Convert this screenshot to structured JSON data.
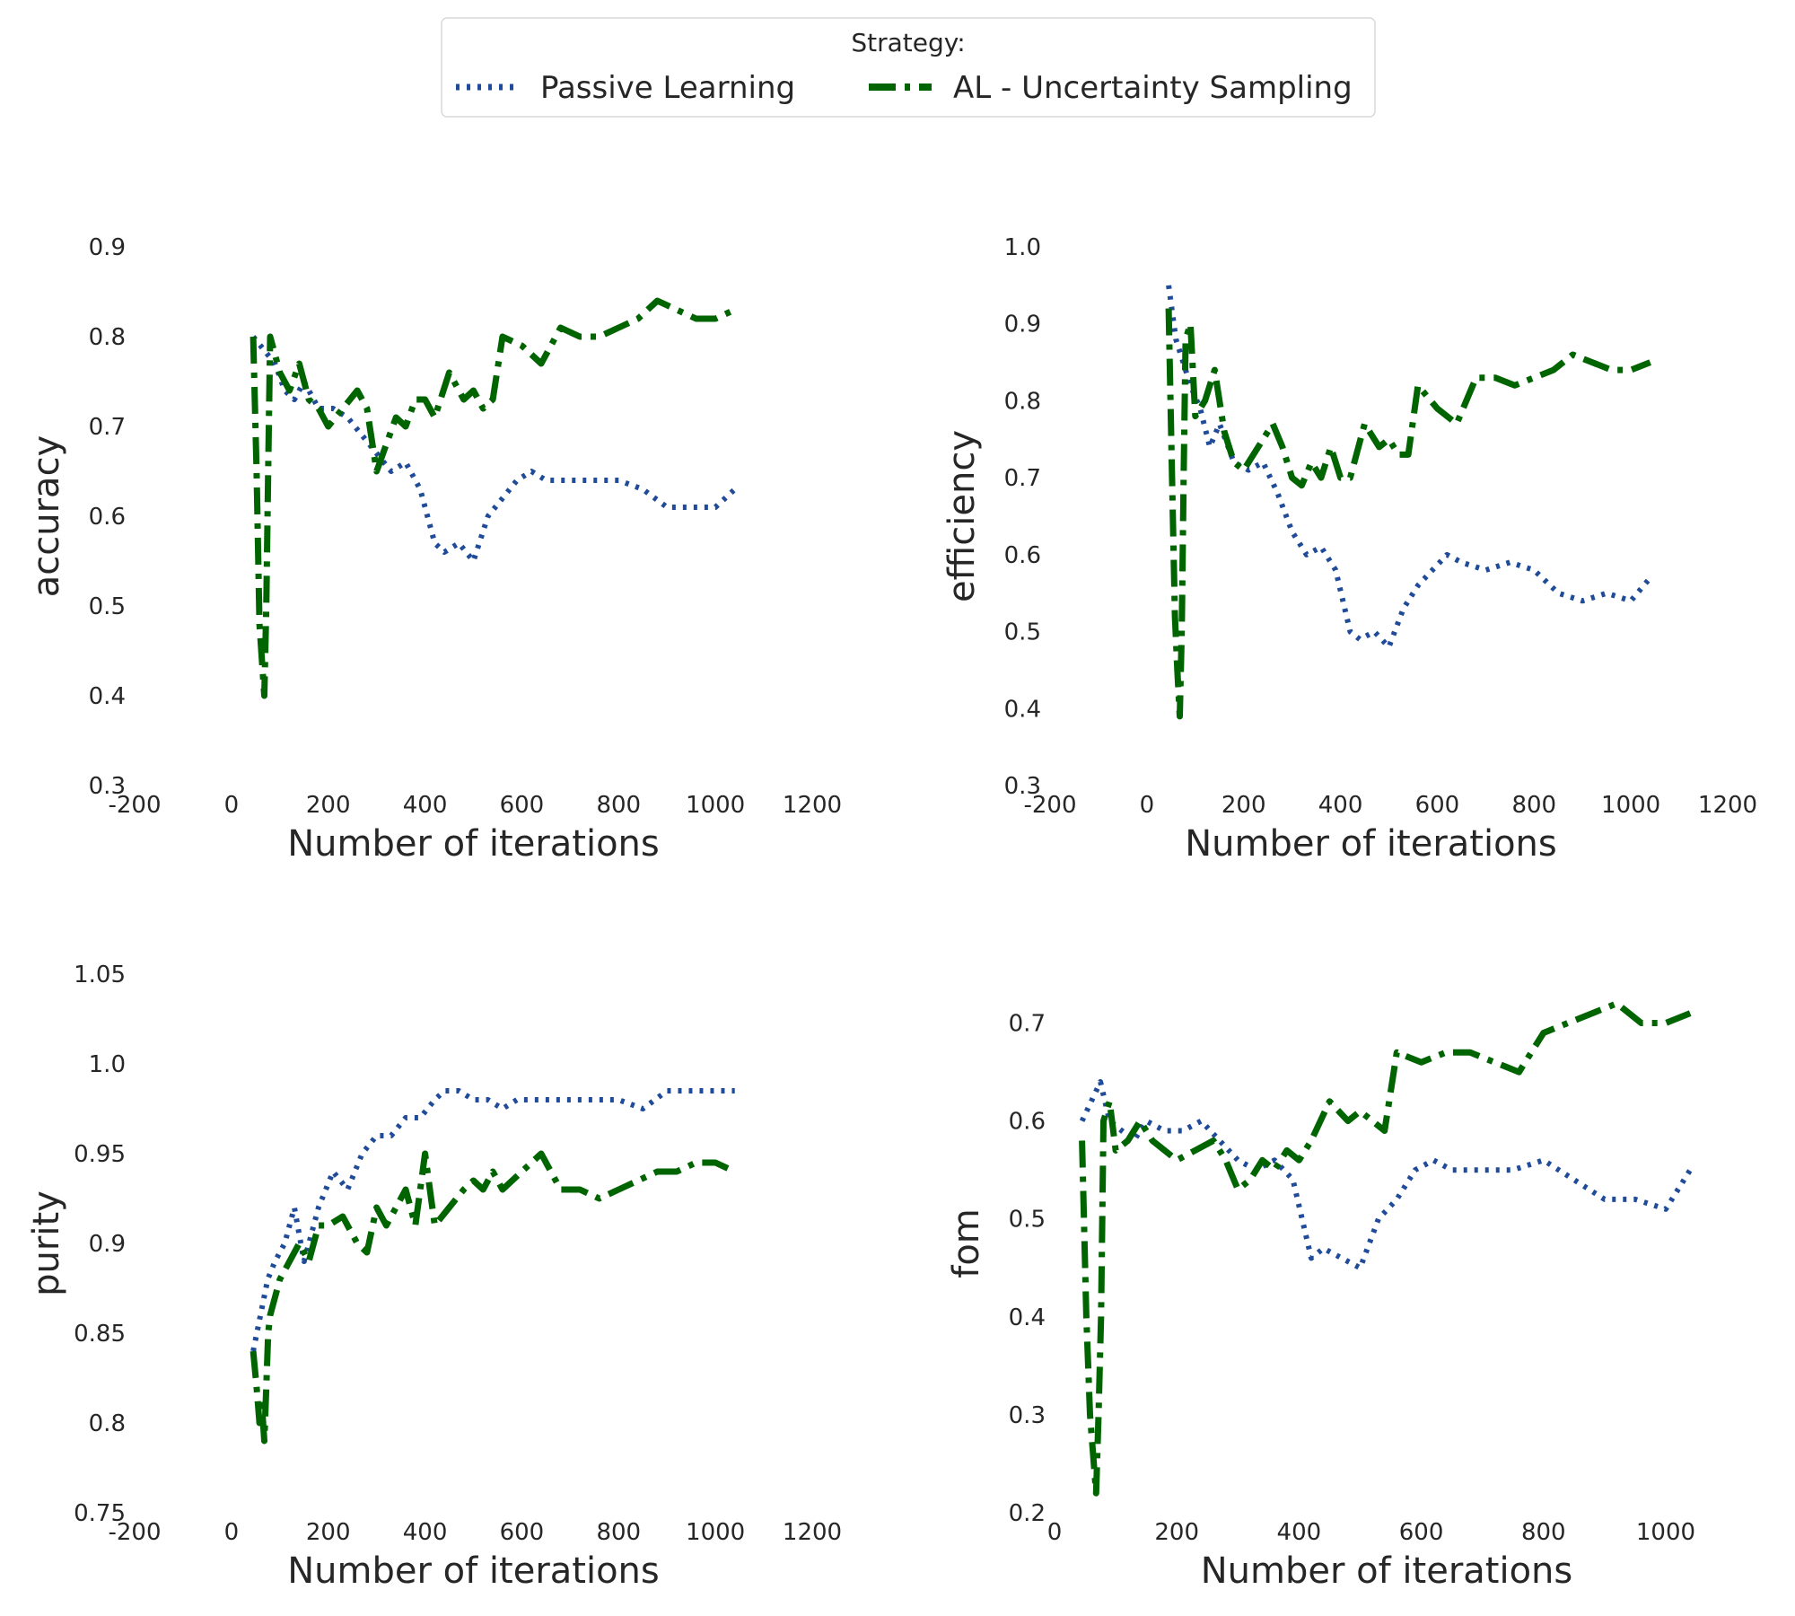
{
  "legend": {
    "title": "Strategy:",
    "entries": [
      {
        "name": "Passive Learning",
        "color": "#1f4b99",
        "dash": "dotted"
      },
      {
        "name": "AL - Uncertainty Sampling",
        "color": "#006400",
        "dash": "dashdot"
      }
    ]
  },
  "chart_data": [
    {
      "type": "line",
      "xlabel": "Number of iterations",
      "ylabel": "accuracy",
      "xlim": [
        -200,
        1200
      ],
      "ylim": [
        0.3,
        0.9
      ],
      "xticks": [
        "-200",
        "0",
        "200",
        "400",
        "600",
        "800",
        "1000",
        "1200"
      ],
      "yticks": [
        "0.3",
        "0.4",
        "0.5",
        "0.6",
        "0.7",
        "0.8",
        "0.9"
      ],
      "series": [
        {
          "name": "Passive Learning",
          "color": "#1f4b99",
          "x": [
            45,
            60,
            75,
            90,
            110,
            130,
            150,
            180,
            210,
            240,
            270,
            300,
            330,
            360,
            390,
            420,
            440,
            470,
            500,
            530,
            560,
            590,
            620,
            650,
            700,
            750,
            800,
            850,
            900,
            950,
            1000,
            1040
          ],
          "y": [
            0.8,
            0.79,
            0.78,
            0.77,
            0.74,
            0.73,
            0.75,
            0.72,
            0.72,
            0.71,
            0.69,
            0.67,
            0.65,
            0.66,
            0.63,
            0.57,
            0.56,
            0.57,
            0.55,
            0.6,
            0.62,
            0.64,
            0.65,
            0.64,
            0.64,
            0.64,
            0.64,
            0.63,
            0.61,
            0.61,
            0.61,
            0.63
          ]
        },
        {
          "name": "AL - Uncertainty Sampling",
          "color": "#006400",
          "x": [
            45,
            52,
            58,
            63,
            68,
            72,
            76,
            80,
            90,
            100,
            120,
            140,
            160,
            180,
            200,
            230,
            260,
            280,
            300,
            320,
            340,
            360,
            380,
            400,
            420,
            450,
            480,
            500,
            520,
            540,
            560,
            600,
            640,
            680,
            720,
            760,
            800,
            840,
            880,
            920,
            960,
            1000,
            1040
          ],
          "y": [
            0.8,
            0.65,
            0.48,
            0.44,
            0.4,
            0.5,
            0.65,
            0.8,
            0.78,
            0.76,
            0.74,
            0.77,
            0.73,
            0.72,
            0.7,
            0.72,
            0.74,
            0.72,
            0.65,
            0.68,
            0.71,
            0.7,
            0.73,
            0.73,
            0.71,
            0.76,
            0.73,
            0.74,
            0.72,
            0.73,
            0.8,
            0.79,
            0.77,
            0.81,
            0.8,
            0.8,
            0.81,
            0.82,
            0.84,
            0.83,
            0.82,
            0.82,
            0.83
          ]
        }
      ]
    },
    {
      "type": "line",
      "xlabel": "Number of iterations",
      "ylabel": "efficiency",
      "xlim": [
        -200,
        1200
      ],
      "ylim": [
        0.3,
        1.0
      ],
      "xticks": [
        "-200",
        "0",
        "200",
        "400",
        "600",
        "800",
        "1000",
        "1200"
      ],
      "yticks": [
        "0.3",
        "0.4",
        "0.5",
        "0.6",
        "0.7",
        "0.8",
        "0.9",
        "1.0"
      ],
      "series": [
        {
          "name": "Passive Learning",
          "color": "#1f4b99",
          "x": [
            45,
            60,
            75,
            90,
            110,
            130,
            150,
            180,
            210,
            240,
            270,
            300,
            330,
            360,
            390,
            420,
            440,
            470,
            500,
            530,
            560,
            590,
            620,
            650,
            700,
            750,
            800,
            850,
            900,
            950,
            1000,
            1040
          ],
          "y": [
            0.95,
            0.88,
            0.85,
            0.82,
            0.79,
            0.74,
            0.77,
            0.72,
            0.71,
            0.72,
            0.68,
            0.63,
            0.6,
            0.61,
            0.58,
            0.5,
            0.49,
            0.5,
            0.48,
            0.53,
            0.56,
            0.58,
            0.6,
            0.59,
            0.58,
            0.59,
            0.58,
            0.55,
            0.54,
            0.55,
            0.54,
            0.57
          ]
        },
        {
          "name": "AL - Uncertainty Sampling",
          "color": "#006400",
          "x": [
            45,
            52,
            58,
            63,
            68,
            72,
            76,
            80,
            90,
            100,
            120,
            140,
            160,
            180,
            200,
            230,
            260,
            280,
            300,
            320,
            340,
            360,
            380,
            400,
            420,
            450,
            480,
            500,
            520,
            540,
            560,
            600,
            640,
            680,
            720,
            760,
            800,
            840,
            880,
            920,
            960,
            1000,
            1040
          ],
          "y": [
            0.92,
            0.7,
            0.52,
            0.45,
            0.39,
            0.5,
            0.7,
            0.88,
            0.9,
            0.78,
            0.8,
            0.84,
            0.76,
            0.72,
            0.71,
            0.74,
            0.77,
            0.74,
            0.7,
            0.69,
            0.72,
            0.7,
            0.74,
            0.7,
            0.7,
            0.77,
            0.74,
            0.75,
            0.73,
            0.73,
            0.82,
            0.79,
            0.77,
            0.83,
            0.83,
            0.82,
            0.83,
            0.84,
            0.86,
            0.85,
            0.84,
            0.84,
            0.85
          ]
        }
      ]
    },
    {
      "type": "line",
      "xlabel": "Number of iterations",
      "ylabel": "purity",
      "xlim": [
        -200,
        1200
      ],
      "ylim": [
        0.75,
        1.05
      ],
      "xticks": [
        "-200",
        "0",
        "200",
        "400",
        "600",
        "800",
        "1000",
        "1200"
      ],
      "yticks": [
        "0.75",
        "0.8",
        "0.85",
        "0.9",
        "0.95",
        "1.0",
        "1.05"
      ],
      "series": [
        {
          "name": "Passive Learning",
          "color": "#1f4b99",
          "x": [
            45,
            60,
            75,
            90,
            110,
            130,
            150,
            180,
            210,
            240,
            270,
            300,
            330,
            360,
            390,
            420,
            440,
            470,
            500,
            530,
            560,
            590,
            620,
            650,
            700,
            750,
            800,
            850,
            900,
            950,
            1000,
            1040
          ],
          "y": [
            0.84,
            0.86,
            0.88,
            0.89,
            0.9,
            0.92,
            0.89,
            0.92,
            0.94,
            0.93,
            0.95,
            0.96,
            0.96,
            0.97,
            0.97,
            0.98,
            0.985,
            0.985,
            0.98,
            0.98,
            0.975,
            0.98,
            0.98,
            0.98,
            0.98,
            0.98,
            0.98,
            0.975,
            0.985,
            0.985,
            0.985,
            0.985
          ]
        },
        {
          "name": "AL - Uncertainty Sampling",
          "color": "#006400",
          "x": [
            45,
            52,
            58,
            63,
            68,
            72,
            76,
            80,
            90,
            100,
            120,
            140,
            160,
            180,
            200,
            230,
            260,
            280,
            300,
            320,
            340,
            360,
            380,
            400,
            420,
            450,
            480,
            500,
            520,
            540,
            560,
            600,
            640,
            680,
            720,
            760,
            800,
            840,
            880,
            920,
            960,
            1000,
            1040
          ],
          "y": [
            0.84,
            0.82,
            0.8,
            0.81,
            0.79,
            0.82,
            0.85,
            0.86,
            0.87,
            0.88,
            0.89,
            0.9,
            0.89,
            0.91,
            0.91,
            0.915,
            0.9,
            0.895,
            0.92,
            0.91,
            0.92,
            0.93,
            0.91,
            0.95,
            0.91,
            0.92,
            0.93,
            0.935,
            0.93,
            0.94,
            0.93,
            0.94,
            0.95,
            0.93,
            0.93,
            0.925,
            0.93,
            0.935,
            0.94,
            0.94,
            0.945,
            0.945,
            0.94
          ]
        }
      ]
    },
    {
      "type": "line",
      "xlabel": "Number of iterations",
      "ylabel": "fom",
      "xlim": [
        0,
        1050
      ],
      "ylim": [
        0.2,
        0.75
      ],
      "xticks": [
        "0",
        "200",
        "400",
        "600",
        "800",
        "1000"
      ],
      "yticks": [
        "0.2",
        "0.3",
        "0.4",
        "0.5",
        "0.6",
        "0.7"
      ],
      "series": [
        {
          "name": "Passive Learning",
          "color": "#1f4b99",
          "x": [
            45,
            60,
            75,
            90,
            110,
            130,
            150,
            180,
            210,
            240,
            270,
            300,
            330,
            360,
            390,
            420,
            440,
            470,
            500,
            530,
            560,
            590,
            620,
            650,
            700,
            750,
            800,
            850,
            900,
            950,
            1000,
            1040
          ],
          "y": [
            0.6,
            0.62,
            0.64,
            0.6,
            0.59,
            0.58,
            0.6,
            0.59,
            0.59,
            0.6,
            0.58,
            0.56,
            0.55,
            0.56,
            0.54,
            0.46,
            0.47,
            0.46,
            0.45,
            0.5,
            0.52,
            0.55,
            0.56,
            0.55,
            0.55,
            0.55,
            0.56,
            0.54,
            0.52,
            0.52,
            0.51,
            0.55
          ]
        },
        {
          "name": "AL - Uncertainty Sampling",
          "color": "#006400",
          "x": [
            45,
            52,
            58,
            63,
            68,
            72,
            76,
            80,
            90,
            100,
            120,
            140,
            160,
            180,
            200,
            230,
            260,
            280,
            300,
            320,
            340,
            360,
            380,
            400,
            420,
            450,
            480,
            500,
            520,
            540,
            560,
            600,
            640,
            680,
            720,
            760,
            800,
            840,
            880,
            920,
            960,
            1000,
            1040
          ],
          "y": [
            0.58,
            0.4,
            0.3,
            0.26,
            0.22,
            0.3,
            0.4,
            0.6,
            0.62,
            0.57,
            0.58,
            0.6,
            0.58,
            0.57,
            0.56,
            0.57,
            0.58,
            0.56,
            0.53,
            0.54,
            0.56,
            0.55,
            0.57,
            0.56,
            0.58,
            0.62,
            0.6,
            0.61,
            0.6,
            0.59,
            0.67,
            0.66,
            0.67,
            0.67,
            0.66,
            0.65,
            0.69,
            0.7,
            0.71,
            0.72,
            0.7,
            0.7,
            0.71
          ]
        }
      ]
    }
  ]
}
